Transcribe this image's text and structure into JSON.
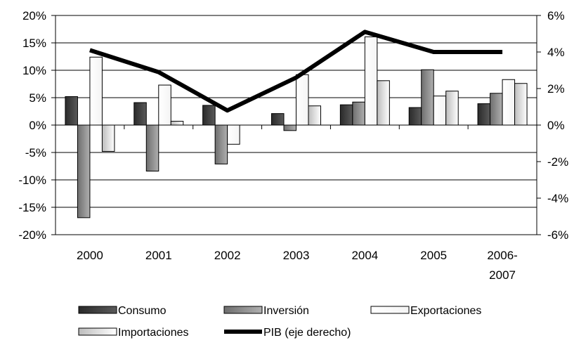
{
  "chart_data": {
    "type": "bar",
    "categories": [
      "2000",
      "2001",
      "2002",
      "2003",
      "2004",
      "2005",
      "2006-2007"
    ],
    "category_labels": [
      [
        "2000"
      ],
      [
        "2001"
      ],
      [
        "2002"
      ],
      [
        "2003"
      ],
      [
        "2004"
      ],
      [
        "2005"
      ],
      [
        "2006-",
        "2007"
      ]
    ],
    "series": [
      {
        "name": "Consumo",
        "axis": "left",
        "kind": "bar",
        "color": "#404040",
        "values": [
          5.2,
          4.1,
          3.6,
          2.1,
          3.7,
          3.2,
          3.9
        ]
      },
      {
        "name": "Inversión",
        "axis": "left",
        "kind": "bar",
        "color": "#8c8c8c",
        "values": [
          -16.9,
          -8.4,
          -7.1,
          -1.0,
          4.2,
          10.1,
          5.8
        ]
      },
      {
        "name": "Exportaciones",
        "axis": "left",
        "kind": "bar",
        "color": "#ffffff",
        "values": [
          12.4,
          7.3,
          -3.5,
          9.2,
          16.1,
          5.3,
          8.3
        ]
      },
      {
        "name": "Importaciones",
        "axis": "left",
        "kind": "bar",
        "color": "#e6e6e6",
        "values": [
          -4.8,
          0.7,
          0.0,
          3.5,
          8.1,
          6.2,
          7.6
        ]
      },
      {
        "name": "PIB (eje derecho)",
        "axis": "right",
        "kind": "line",
        "color": "#000000",
        "values": [
          4.1,
          2.9,
          0.8,
          2.6,
          5.1,
          4.0,
          4.0
        ]
      }
    ],
    "y_left": {
      "min": -20,
      "max": 20,
      "step": 5,
      "ticks": [
        "-20%",
        "-15%",
        "-10%",
        "-5%",
        "0%",
        "5%",
        "10%",
        "15%",
        "20%"
      ]
    },
    "y_right": {
      "min": -6,
      "max": 6,
      "step": 2,
      "ticks": [
        "-6%",
        "-4%",
        "-2%",
        "0%",
        "2%",
        "4%",
        "6%"
      ]
    },
    "grid": true,
    "legend_position": "bottom"
  }
}
